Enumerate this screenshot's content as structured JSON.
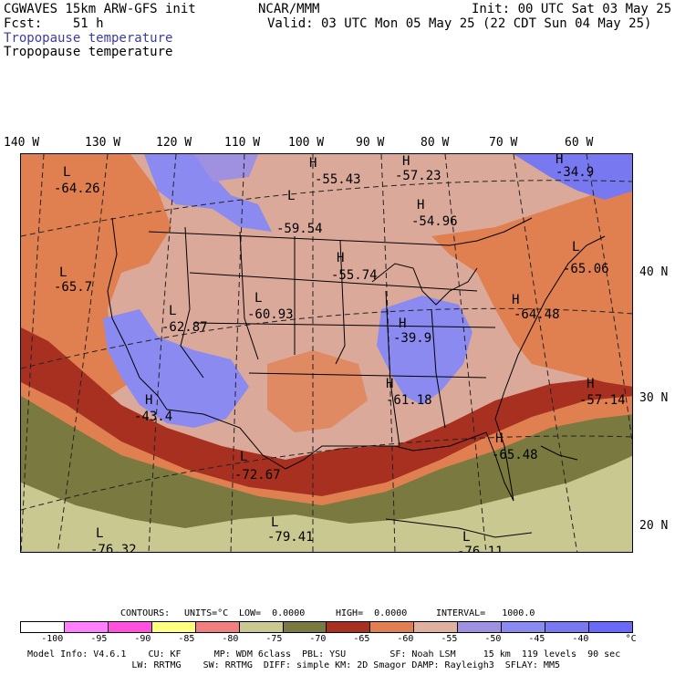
{
  "header": {
    "model": "CGWAVES 15km ARW-GFS init",
    "fcst_label": "Fcst:",
    "fcst_value": "51 h",
    "org": "NCAR/MMM",
    "init": "Init: 00 UTC Sat 03 May 25",
    "valid": "Valid: 03 UTC Mon 05 May 25 (22 CDT Sun 04 May 25)",
    "field_title_blue": "Tropopause temperature",
    "field_title_black": "Tropopause temperature"
  },
  "longitudes": [
    "140 W",
    "130 W",
    "120 W",
    "110 W",
    "100 W",
    "90 W",
    "80 W",
    "70 W",
    "60 W"
  ],
  "latitudes": [
    "40 N",
    "30 N",
    "20 N"
  ],
  "map_labels": [
    {
      "type": "L",
      "value": "-64.26"
    },
    {
      "type": "H",
      "value": "-55.43"
    },
    {
      "type": "H",
      "value": "-57.23"
    },
    {
      "type": "H",
      "value": "-34.9"
    },
    {
      "type": "H",
      "value": "-54.96"
    },
    {
      "type": "L",
      "value": "-59.54"
    },
    {
      "type": "L",
      "value": "-65.7"
    },
    {
      "type": "H",
      "value": "-55.74"
    },
    {
      "type": "L",
      "value": "-65.06"
    },
    {
      "type": "L",
      "value": "-62.87"
    },
    {
      "type": "L",
      "value": "-60.93"
    },
    {
      "type": "H",
      "value": "-39.9"
    },
    {
      "type": "H",
      "value": "-64.48"
    },
    {
      "type": "H",
      "value": "-43.4"
    },
    {
      "type": "H",
      "value": "-61.18"
    },
    {
      "type": "H",
      "value": "-57.14"
    },
    {
      "type": "H",
      "value": "-65.48"
    },
    {
      "type": "L",
      "value": "-72.67"
    },
    {
      "type": "L",
      "value": "-79.41"
    },
    {
      "type": "L",
      "value": "-76.32"
    },
    {
      "type": "L",
      "value": "-76.11"
    }
  ],
  "contour_info": {
    "contours": "CONTOURS:",
    "units": "UNITS=°C",
    "low": "LOW=  0.0000",
    "high": "HIGH=  0.0000",
    "interval": "INTERVAL=   1000.0"
  },
  "colorbar": {
    "colors": [
      "#ffffff",
      "#ff80ff",
      "#ff50e0",
      "#ffff80",
      "#f08080",
      "#c8c890",
      "#7a7a40",
      "#a83020",
      "#e08050",
      "#e0b0a0",
      "#a090e0",
      "#8a8af0",
      "#7878f0",
      "#6a6af8"
    ],
    "labels": [
      "-100",
      "-95",
      "-90",
      "-85",
      "-80",
      "-75",
      "-70",
      "-65",
      "-60",
      "-55",
      "-50",
      "-45",
      "-40",
      "°C"
    ]
  },
  "footer": {
    "line1": "Model Info: V4.6.1    CU: KF      MP: WDM 6class  PBL: YSU        SF: Noah LSM     15 km  119 levels  90 sec",
    "line2": "                   LW: RRTMG    SW: RRTMG  DIFF: simple KM: 2D Smagor DAMP: Rayleigh3  SFLAY: MM5"
  }
}
